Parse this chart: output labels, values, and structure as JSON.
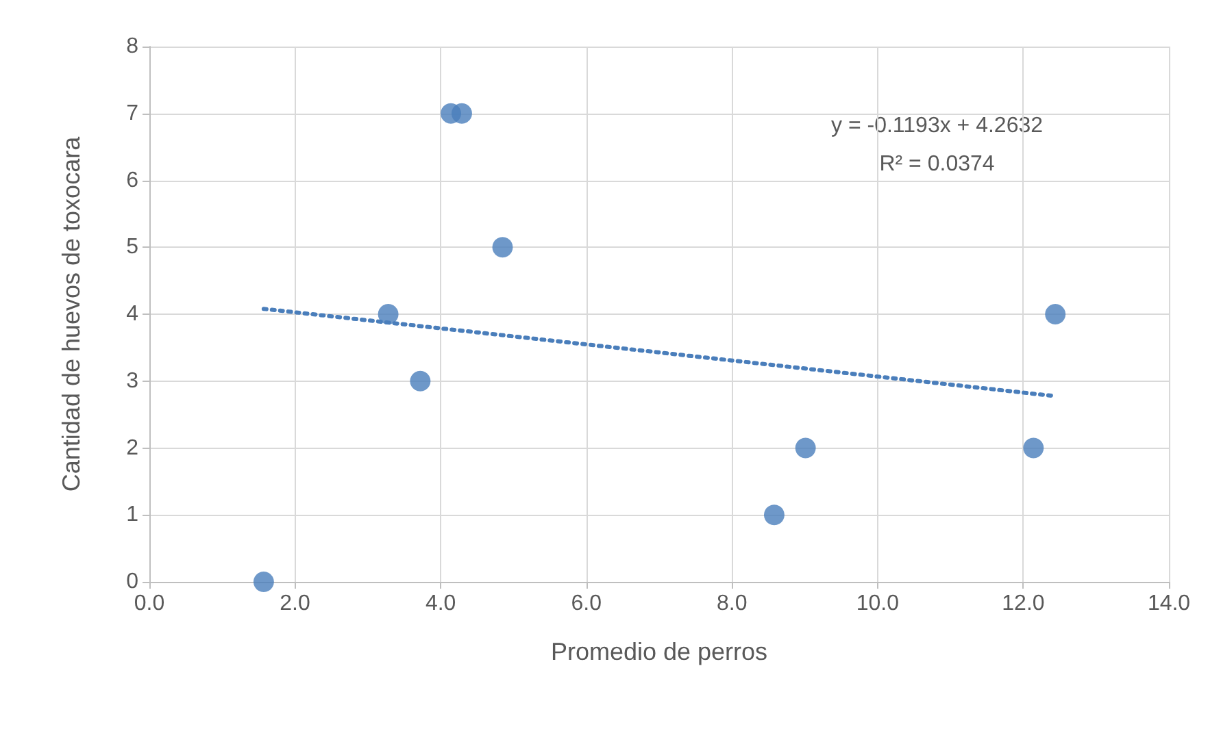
{
  "chart_data": {
    "type": "scatter",
    "xlabel": "Promedio de perros",
    "ylabel": "Cantidad de huevos de toxocara",
    "xlim": [
      0,
      14
    ],
    "xticks": [
      {
        "value": 0,
        "label": "0.0"
      },
      {
        "value": 2,
        "label": "2.0"
      },
      {
        "value": 4,
        "label": "4.0"
      },
      {
        "value": 6,
        "label": "6.0"
      },
      {
        "value": 8,
        "label": "8.0"
      },
      {
        "value": 10,
        "label": "10.0"
      },
      {
        "value": 12,
        "label": "12.0"
      },
      {
        "value": 14,
        "label": "14.0"
      }
    ],
    "ylim": [
      0,
      8
    ],
    "yticks": [
      0,
      1,
      2,
      3,
      4,
      5,
      6,
      7,
      8
    ],
    "grid": true,
    "marker": "circle",
    "series": [
      {
        "color": "#4a7ebb",
        "x": [
          1.57,
          3.28,
          3.72,
          4.14,
          4.29,
          4.85,
          8.58,
          9.01,
          12.14,
          12.44
        ],
        "values": [
          0,
          4,
          3,
          7,
          7,
          5,
          1,
          2,
          2,
          4
        ]
      },
      {
        "type": "line",
        "color": "#4a7ebb",
        "line_style": "dotted",
        "marker": "none",
        "x": [
          1.57,
          12.4
        ],
        "values": [
          4.08,
          2.78
        ]
      }
    ],
    "annotations": [
      "y = -0.1193x + 4.2632\nR² = 0.0374"
    ]
  }
}
